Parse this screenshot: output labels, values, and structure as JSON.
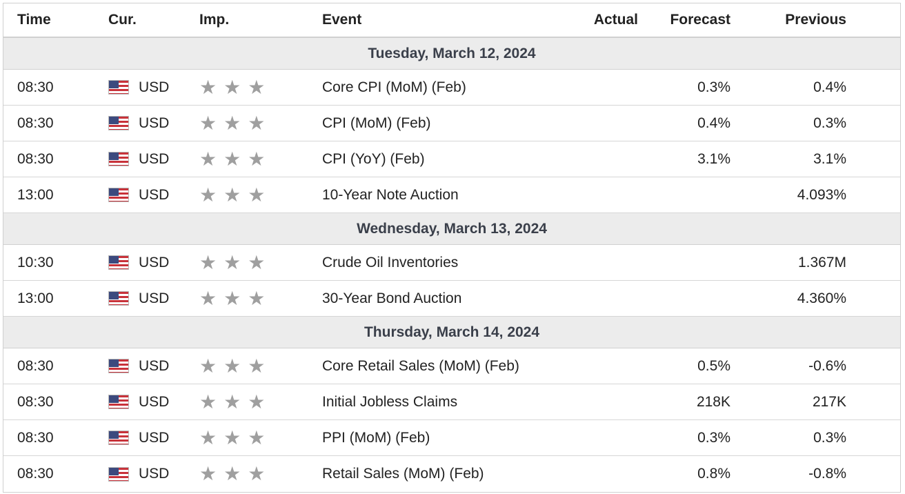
{
  "columns": {
    "time": "Time",
    "currency": "Cur.",
    "importance": "Imp.",
    "event": "Event",
    "actual": "Actual",
    "forecast": "Forecast",
    "previous": "Previous"
  },
  "icons": {
    "flag": "us-flag-icon",
    "star": "star-icon",
    "star_color": "#9f9f9f"
  },
  "days": [
    {
      "label": "Tuesday, March 12, 2024",
      "events": [
        {
          "time": "08:30",
          "currency": "USD",
          "importance": 3,
          "event": "Core CPI (MoM) (Feb)",
          "actual": "",
          "forecast": "0.3%",
          "previous": "0.4%"
        },
        {
          "time": "08:30",
          "currency": "USD",
          "importance": 3,
          "event": "CPI (MoM) (Feb)",
          "actual": "",
          "forecast": "0.4%",
          "previous": "0.3%"
        },
        {
          "time": "08:30",
          "currency": "USD",
          "importance": 3,
          "event": "CPI (YoY) (Feb)",
          "actual": "",
          "forecast": "3.1%",
          "previous": "3.1%"
        },
        {
          "time": "13:00",
          "currency": "USD",
          "importance": 3,
          "event": "10-Year Note Auction",
          "actual": "",
          "forecast": "",
          "previous": "4.093%"
        }
      ]
    },
    {
      "label": "Wednesday, March 13, 2024",
      "events": [
        {
          "time": "10:30",
          "currency": "USD",
          "importance": 3,
          "event": "Crude Oil Inventories",
          "actual": "",
          "forecast": "",
          "previous": "1.367M"
        },
        {
          "time": "13:00",
          "currency": "USD",
          "importance": 3,
          "event": "30-Year Bond Auction",
          "actual": "",
          "forecast": "",
          "previous": "4.360%"
        }
      ]
    },
    {
      "label": "Thursday, March 14, 2024",
      "events": [
        {
          "time": "08:30",
          "currency": "USD",
          "importance": 3,
          "event": "Core Retail Sales (MoM) (Feb)",
          "actual": "",
          "forecast": "0.5%",
          "previous": "-0.6%"
        },
        {
          "time": "08:30",
          "currency": "USD",
          "importance": 3,
          "event": "Initial Jobless Claims",
          "actual": "",
          "forecast": "218K",
          "previous": "217K"
        },
        {
          "time": "08:30",
          "currency": "USD",
          "importance": 3,
          "event": "PPI (MoM) (Feb)",
          "actual": "",
          "forecast": "0.3%",
          "previous": "0.3%"
        },
        {
          "time": "08:30",
          "currency": "USD",
          "importance": 3,
          "event": "Retail Sales (MoM) (Feb)",
          "actual": "",
          "forecast": "0.8%",
          "previous": "-0.8%"
        }
      ]
    }
  ]
}
